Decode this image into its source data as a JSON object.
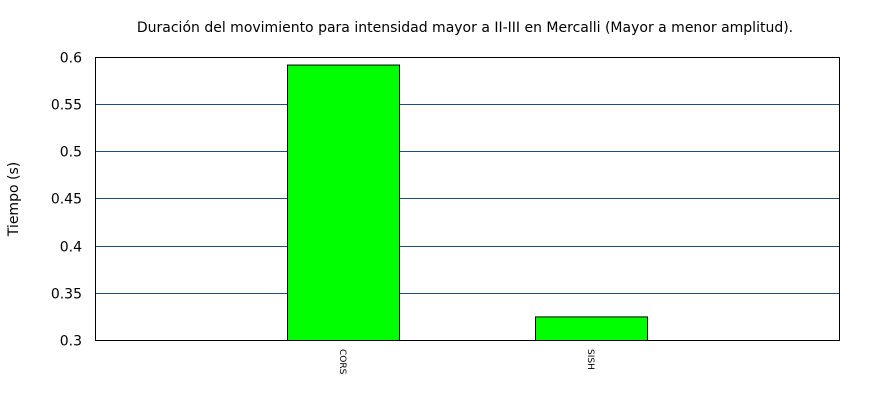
{
  "chart_data": {
    "type": "bar",
    "title": "Duración del movimiento para intensidad mayor a II-III en Mercalli (Mayor a menor amplitud).",
    "xlabel": "",
    "ylabel": "Tiempo (s)",
    "categories": [
      "CORS",
      "SISH"
    ],
    "values": [
      0.592,
      0.325
    ],
    "ylim": [
      0.3,
      0.6
    ],
    "yticks": [
      "0.3",
      "0.35",
      "0.4",
      "0.45",
      "0.5",
      "0.55",
      "0.6"
    ],
    "grid": "horizontal",
    "bar_color": "#00ff00",
    "grid_color": "#1f4e79"
  }
}
